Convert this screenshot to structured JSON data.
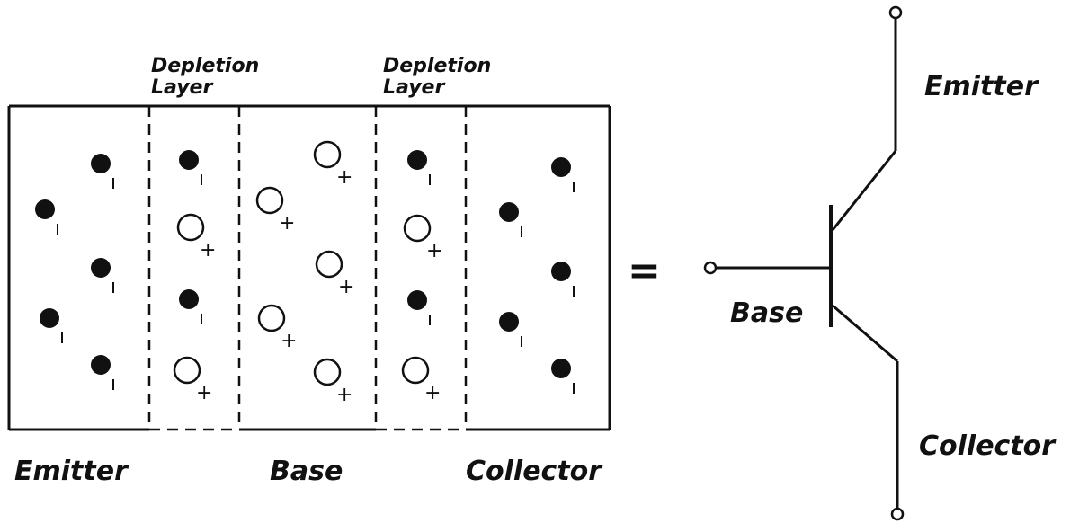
{
  "regions": {
    "emitter": "Emitter",
    "base": "Base",
    "collector": "Collector"
  },
  "depletion_left": [
    "Depletion",
    "Layer"
  ],
  "depletion_right": [
    "Depletion",
    "Layer"
  ],
  "equals": "=",
  "symbol": {
    "emitter": "Emitter",
    "base": "Base",
    "collector": "Collector"
  },
  "charge_signs": {
    "electron": "-",
    "hole": "+"
  }
}
